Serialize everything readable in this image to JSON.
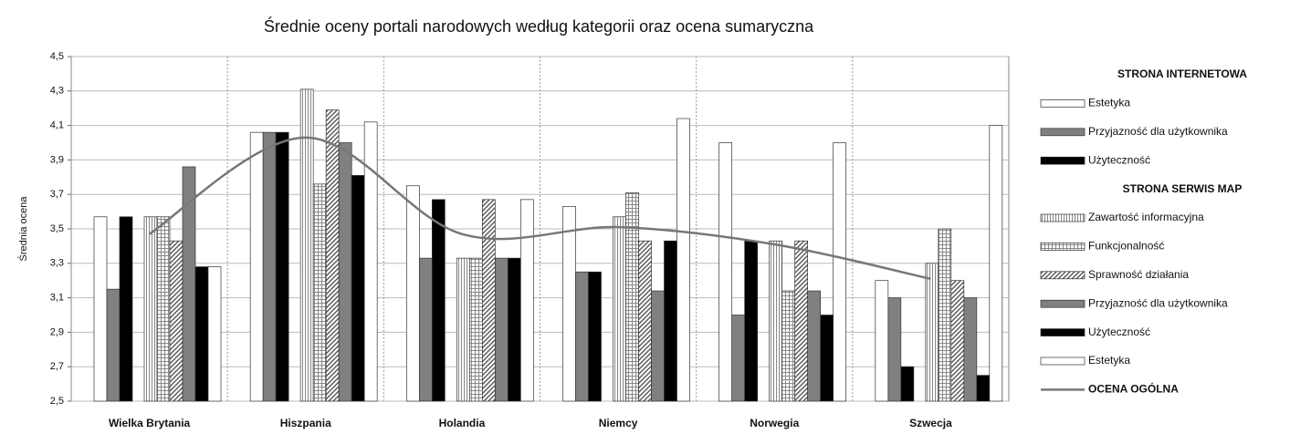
{
  "chart_data": {
    "type": "bar",
    "title": "Średnie oceny portali narodowych według kategorii oraz ocena sumaryczna",
    "ylabel": "Średnia ocena",
    "categories": [
      "Wielka Brytania",
      "Hiszpania",
      "Holandia",
      "Niemcy",
      "Norwegia",
      "Szwecja"
    ],
    "legend_titles": [
      "STRONA INTERNETOWA",
      "STRONA SERWIS MAP"
    ],
    "series": [
      {
        "name": "Estetyka",
        "color": "#ffffff",
        "pattern": "solid",
        "values": [
          3.57,
          4.06,
          3.75,
          3.63,
          4.0,
          3.2
        ]
      },
      {
        "name": "Przyjazność dla użytkownika",
        "color": "#808080",
        "pattern": "solid",
        "values": [
          3.15,
          4.06,
          3.33,
          3.25,
          3.0,
          3.1
        ]
      },
      {
        "name": "Użyteczność",
        "color": "#000000",
        "pattern": "solid",
        "values": [
          3.57,
          4.06,
          3.67,
          3.25,
          3.43,
          2.7
        ]
      },
      {
        "name": "Zawartość informacyjna",
        "color": "#999999",
        "pattern": "vertical",
        "values": [
          3.57,
          4.31,
          3.33,
          3.57,
          3.43,
          3.3
        ]
      },
      {
        "name": "Funkcjonalność",
        "color": "#999999",
        "pattern": "grid",
        "values": [
          3.57,
          3.76,
          3.33,
          3.71,
          3.14,
          3.5
        ]
      },
      {
        "name": "Sprawność działania",
        "color": "#666666",
        "pattern": "diagonal",
        "values": [
          3.43,
          4.19,
          3.67,
          3.43,
          3.43,
          3.2
        ]
      },
      {
        "name": "Przyjazność dla użytkownika",
        "color": "#808080",
        "pattern": "solid",
        "values": [
          3.86,
          4.0,
          3.33,
          3.14,
          3.14,
          3.1
        ]
      },
      {
        "name": "Użyteczność",
        "color": "#000000",
        "pattern": "solid",
        "values": [
          3.28,
          3.81,
          3.33,
          3.43,
          3.0,
          2.65
        ]
      },
      {
        "name": "Estetyka",
        "color": "#ffffff",
        "pattern": "solid",
        "values": [
          3.28,
          4.12,
          3.67,
          4.14,
          4.0,
          4.1
        ]
      },
      {
        "name": "OCENA OGÓLNA",
        "type": "line",
        "color": "#777777",
        "values": [
          3.47,
          4.03,
          3.47,
          3.51,
          3.41,
          3.21
        ]
      }
    ],
    "ylim": [
      2.5,
      4.5
    ],
    "yticks": [
      {
        "value": 2.5,
        "label": "2,5"
      },
      {
        "value": 2.7,
        "label": "2,7"
      },
      {
        "value": 2.9,
        "label": "2,9"
      },
      {
        "value": 3.1,
        "label": "3,1"
      },
      {
        "value": 3.3,
        "label": "3,3"
      },
      {
        "value": 3.5,
        "label": "3,5"
      },
      {
        "value": 3.7,
        "label": "3,7"
      },
      {
        "value": 3.9,
        "label": "3,9"
      },
      {
        "value": 4.1,
        "label": "4,1"
      },
      {
        "value": 4.3,
        "label": "4,3"
      },
      {
        "value": 4.5,
        "label": "4,5"
      }
    ],
    "grid": true
  }
}
